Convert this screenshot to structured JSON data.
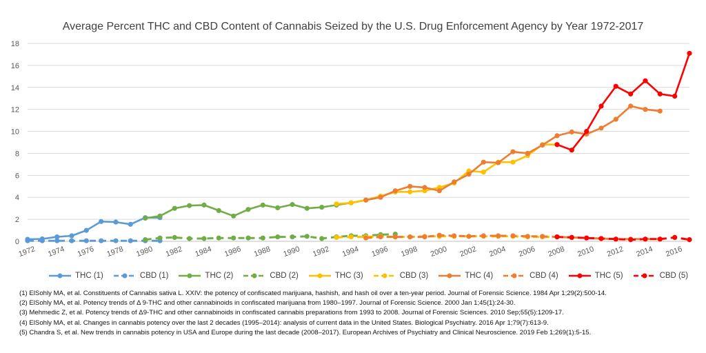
{
  "chart_data": {
    "type": "line",
    "title": "Average Percent THC and CBD Content of Cannabis Seized by the U.S. Drug Enforcement Agency by Year 1972-2017",
    "xlabel": "",
    "ylabel": "",
    "xlim": [
      1972,
      2017
    ],
    "ylim": [
      0,
      18
    ],
    "yticks": [
      "0",
      "2",
      "4",
      "6",
      "8",
      "10",
      "12",
      "14",
      "16",
      "18"
    ],
    "xticks": [
      "1972",
      "1974",
      "1976",
      "1978",
      "1980",
      "1982",
      "1984",
      "1986",
      "1988",
      "1990",
      "1992",
      "1994",
      "1996",
      "1998",
      "2000",
      "2002",
      "2004",
      "2006",
      "2008",
      "2010",
      "2012",
      "2014",
      "2016"
    ],
    "grid": true,
    "legend_position": "bottom",
    "series": [
      {
        "name": "THC (1)",
        "color": "#5B9BD5",
        "dashed": false,
        "x": [
          1972,
          1973,
          1974,
          1975,
          1976,
          1977,
          1978,
          1979,
          1980,
          1981
        ],
        "y": [
          0.18,
          0.22,
          0.4,
          0.5,
          1.0,
          1.8,
          1.75,
          1.55,
          2.15,
          2.15
        ]
      },
      {
        "name": "CBD (1)",
        "color": "#5B9BD5",
        "dashed": true,
        "x": [
          1972,
          1973,
          1974,
          1975,
          1976,
          1977,
          1978,
          1979,
          1980,
          1981
        ],
        "y": [
          0.05,
          0.05,
          0.05,
          0.05,
          0.05,
          0.05,
          0.05,
          0.05,
          0.05,
          0.05
        ]
      },
      {
        "name": "THC (2)",
        "color": "#70AD47",
        "dashed": false,
        "x": [
          1980,
          1981,
          1982,
          1983,
          1984,
          1985,
          1986,
          1987,
          1988,
          1989,
          1990,
          1991,
          1992,
          1993,
          1994,
          1995,
          1996,
          1997
        ],
        "y": [
          2.1,
          2.3,
          3.0,
          3.25,
          3.3,
          2.8,
          2.3,
          2.9,
          3.3,
          3.05,
          3.35,
          3.0,
          3.1,
          3.3,
          3.5,
          3.75,
          4.1,
          4.5
        ]
      },
      {
        "name": "CBD (2)",
        "color": "#70AD47",
        "dashed": true,
        "x": [
          1980,
          1981,
          1982,
          1983,
          1984,
          1985,
          1986,
          1987,
          1988,
          1989,
          1990,
          1991,
          1992,
          1993,
          1994,
          1995,
          1996,
          1997
        ],
        "y": [
          0.15,
          0.3,
          0.35,
          0.25,
          0.25,
          0.3,
          0.3,
          0.3,
          0.3,
          0.4,
          0.4,
          0.45,
          0.25,
          0.4,
          0.5,
          0.5,
          0.6,
          0.65
        ]
      },
      {
        "name": "THC (3)",
        "color": "#FFC000",
        "dashed": false,
        "x": [
          1993,
          1994,
          1995,
          1996,
          1997,
          1998,
          1999,
          2000,
          2001,
          2002,
          2003,
          2004,
          2005,
          2006,
          2007,
          2008
        ],
        "y": [
          3.4,
          3.5,
          3.75,
          4.1,
          4.5,
          4.5,
          4.6,
          4.9,
          5.3,
          6.4,
          6.3,
          7.2,
          7.2,
          7.8,
          8.8,
          8.8
        ]
      },
      {
        "name": "CBD (3)",
        "color": "#FFC000",
        "dashed": true,
        "x": [
          1993,
          1994,
          1995,
          1996,
          1997,
          1998,
          1999,
          2000,
          2001,
          2002,
          2003,
          2004,
          2005,
          2006,
          2007,
          2008
        ],
        "y": [
          0.35,
          0.4,
          0.4,
          0.45,
          0.4,
          0.4,
          0.45,
          0.45,
          0.45,
          0.45,
          0.45,
          0.45,
          0.45,
          0.4,
          0.4,
          0.4
        ]
      },
      {
        "name": "THC (4)",
        "color": "#ED7D31",
        "dashed": false,
        "x": [
          1995,
          1996,
          1997,
          1998,
          1999,
          2000,
          2001,
          2002,
          2003,
          2004,
          2005,
          2006,
          2007,
          2008,
          2009,
          2010,
          2011,
          2012,
          2013,
          2014,
          2015
        ],
        "y": [
          3.75,
          4.0,
          4.6,
          5.0,
          4.9,
          4.6,
          5.4,
          6.1,
          7.2,
          7.15,
          8.15,
          8.0,
          8.75,
          9.6,
          9.95,
          9.75,
          10.3,
          11.1,
          12.3,
          12.0,
          11.85
        ]
      },
      {
        "name": "CBD (4)",
        "color": "#ED7D31",
        "dashed": true,
        "x": [
          1995,
          1996,
          1997,
          1998,
          1999,
          2000,
          2001,
          2002,
          2003,
          2004,
          2005,
          2006,
          2007,
          2008,
          2009,
          2010,
          2011,
          2012,
          2013,
          2014,
          2015
        ],
        "y": [
          0.3,
          0.4,
          0.4,
          0.4,
          0.4,
          0.55,
          0.5,
          0.45,
          0.5,
          0.5,
          0.5,
          0.45,
          0.45,
          0.4,
          0.35,
          0.3,
          0.25,
          0.2,
          0.2,
          0.2,
          0.2
        ]
      },
      {
        "name": "THC (5)",
        "color": "#FF0000",
        "dashed": false,
        "x": [
          2008,
          2009,
          2010,
          2011,
          2012,
          2013,
          2014,
          2015,
          2016,
          2017
        ],
        "y": [
          8.8,
          8.3,
          10.0,
          12.3,
          14.1,
          13.4,
          14.6,
          13.4,
          13.2,
          17.1
        ]
      },
      {
        "name": "CBD (5)",
        "color": "#FF0000",
        "dashed": true,
        "x": [
          2008,
          2009,
          2010,
          2011,
          2012,
          2013,
          2014,
          2015,
          2016,
          2017
        ],
        "y": [
          0.4,
          0.35,
          0.3,
          0.25,
          0.2,
          0.15,
          0.2,
          0.2,
          0.35,
          0.15
        ]
      }
    ]
  },
  "references": [
    "(1) ElSohly MA, et al. Constituents of Cannabis sativa L. XXIV: the potency of confiscated marijuana, hashish, and hash oil over a ten-year period. Journal of Forensic Science. 1984 Apr 1;29(2):500-14.",
    "(2) ElSohly MA, et al. Potency trends of Δ 9-THC and other cannabinoids in confiscated marijuana from 1980–1997. Journal of Forensic Science. 2000 Jan 1;45(1):24-30.",
    "(3) Mehmedic Z, et al. Potency trends of Δ9-THC and other cannabinoids in confiscated cannabis preparations from 1993 to 2008. Journal of Forensic Sciences. 2010 Sep;55(5):1209-17.",
    "(4) ElSohly MA, et al. Changes in cannabis potency over the last 2 decades (1995–2014): analysis of current data in the United States. Biological Psychiatry. 2016 Apr 1;79(7):613-9.",
    "(5) Chandra S, et al. New trends in cannabis potency in USA and Europe during the last decade (2008–2017). European Archives of Psychiatry and Clinical Neuroscience. 2019 Feb 1;269(1):5-15."
  ]
}
